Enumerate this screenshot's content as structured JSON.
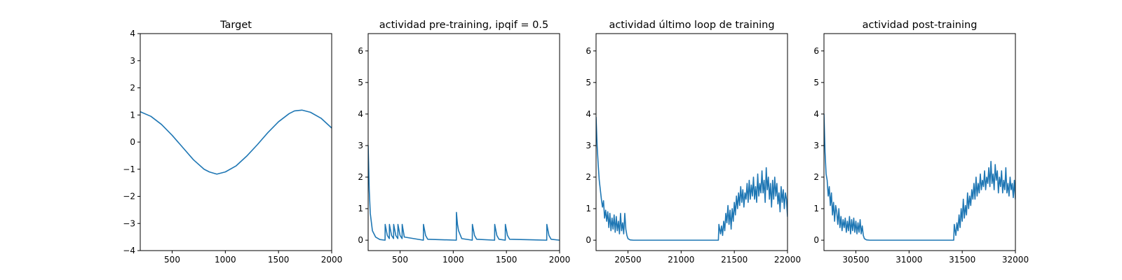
{
  "chart_data": [
    {
      "type": "line",
      "title": "Target",
      "xlabel": "",
      "ylabel": "",
      "xlim": [
        200,
        2000
      ],
      "ylim": [
        -4,
        4
      ],
      "xticks": [
        500,
        1000,
        1500,
        2000
      ],
      "yticks": [
        -4,
        -3,
        -2,
        -1,
        0,
        1,
        2,
        3,
        4
      ],
      "grid": false,
      "series": [
        {
          "color": "#1f77b4",
          "x": [
            200,
            300,
            400,
            500,
            600,
            700,
            800,
            850,
            920,
            1000,
            1100,
            1200,
            1300,
            1400,
            1500,
            1600,
            1650,
            1720,
            1800,
            1900,
            2000
          ],
          "y": [
            1.12,
            0.95,
            0.65,
            0.25,
            -0.2,
            -0.65,
            -1.0,
            -1.1,
            -1.18,
            -1.1,
            -0.88,
            -0.52,
            -0.1,
            0.35,
            0.75,
            1.05,
            1.15,
            1.18,
            1.1,
            0.88,
            0.52
          ]
        }
      ]
    },
    {
      "type": "line",
      "title": "actividad pre-training, ipqif = 0.5",
      "xlabel": "",
      "ylabel": "",
      "xlim": [
        200,
        2000
      ],
      "ylim": [
        -0.33,
        6.55
      ],
      "xticks": [
        500,
        1000,
        1500,
        2000
      ],
      "yticks": [
        0,
        1,
        2,
        3,
        4,
        5,
        6
      ],
      "grid": false,
      "series": [
        {
          "color": "#1f77b4",
          "x": [
            200,
            210,
            220,
            240,
            270,
            310,
            359,
            360,
            380,
            399,
            400,
            420,
            439,
            440,
            460,
            479,
            480,
            500,
            519,
            520,
            540,
            719,
            720,
            740,
            760,
            1029,
            1030,
            1040,
            1050,
            1080,
            1179,
            1180,
            1200,
            1220,
            1389,
            1390,
            1410,
            1430,
            1489,
            1490,
            1510,
            1530,
            1879,
            1880,
            1900,
            1920,
            2000
          ],
          "y": [
            3.0,
            1.6,
            0.85,
            0.3,
            0.1,
            0.02,
            0.0,
            0.5,
            0.15,
            0.05,
            0.5,
            0.15,
            0.05,
            0.5,
            0.15,
            0.05,
            0.5,
            0.15,
            0.05,
            0.5,
            0.1,
            0.0,
            0.5,
            0.15,
            0.03,
            0.0,
            0.88,
            0.5,
            0.3,
            0.05,
            0.0,
            0.5,
            0.15,
            0.03,
            0.0,
            0.5,
            0.15,
            0.03,
            0.0,
            0.5,
            0.15,
            0.03,
            0.0,
            0.5,
            0.15,
            0.03,
            0.0
          ]
        }
      ]
    },
    {
      "type": "line",
      "title": "actividad último loop de training",
      "xlabel": "",
      "ylabel": "",
      "xlim": [
        20200,
        22000
      ],
      "ylim": [
        -0.33,
        6.55
      ],
      "xticks": [
        20500,
        21000,
        21500,
        22000
      ],
      "yticks": [
        0,
        1,
        2,
        3,
        4,
        5,
        6
      ],
      "grid": false,
      "series": [
        {
          "color": "#1f77b4",
          "x": [
            20200,
            20210,
            20220,
            20230,
            20240,
            20250,
            20260,
            20270,
            20280,
            20290,
            20300,
            20310,
            20320,
            20330,
            20340,
            20350,
            20360,
            20370,
            20380,
            20390,
            20400,
            20410,
            20420,
            20430,
            20440,
            20450,
            20460,
            20470,
            20480,
            20490,
            20500,
            20520,
            20550,
            21350,
            21355,
            21370,
            21380,
            21390,
            21400,
            21410,
            21420,
            21430,
            21440,
            21450,
            21460,
            21470,
            21480,
            21490,
            21500,
            21510,
            21520,
            21530,
            21540,
            21550,
            21560,
            21570,
            21580,
            21590,
            21600,
            21610,
            21620,
            21630,
            21640,
            21650,
            21660,
            21670,
            21680,
            21690,
            21700,
            21710,
            21720,
            21730,
            21740,
            21750,
            21760,
            21770,
            21780,
            21790,
            21800,
            21810,
            21820,
            21830,
            21840,
            21850,
            21860,
            21870,
            21880,
            21890,
            21900,
            21910,
            21920,
            21930,
            21940,
            21950,
            21960,
            21970,
            21980,
            21990,
            22000
          ],
          "y": [
            3.9,
            3.0,
            2.4,
            1.9,
            1.6,
            1.3,
            1.05,
            1.25,
            0.7,
            0.95,
            0.6,
            0.9,
            0.4,
            0.85,
            0.3,
            0.7,
            0.35,
            0.8,
            0.25,
            0.75,
            0.3,
            0.6,
            0.2,
            0.85,
            0.3,
            0.55,
            0.2,
            0.85,
            0.35,
            0.15,
            0.05,
            0.01,
            0.0,
            0.0,
            0.5,
            0.2,
            0.45,
            0.15,
            0.6,
            0.3,
            0.85,
            0.55,
            1.1,
            0.5,
            0.95,
            0.35,
            1.0,
            0.6,
            1.2,
            0.8,
            1.4,
            1.0,
            1.5,
            1.1,
            1.7,
            1.2,
            1.6,
            1.05,
            1.5,
            1.3,
            1.8,
            1.2,
            1.9,
            1.3,
            1.75,
            1.4,
            2.0,
            1.3,
            1.7,
            1.2,
            2.1,
            1.4,
            1.8,
            1.5,
            2.2,
            1.5,
            1.9,
            1.2,
            2.3,
            1.6,
            2.0,
            1.3,
            1.8,
            1.05,
            1.9,
            1.3,
            2.0,
            1.4,
            1.8,
            1.15,
            1.5,
            0.9,
            1.7,
            1.2,
            1.6,
            1.0,
            1.5,
            1.3,
            0.75
          ]
        }
      ]
    },
    {
      "type": "line",
      "title": "actividad post-training",
      "xlabel": "",
      "ylabel": "",
      "xlim": [
        30200,
        32000
      ],
      "ylim": [
        -0.33,
        6.55
      ],
      "xticks": [
        30500,
        31000,
        31500,
        32000
      ],
      "yticks": [
        0,
        1,
        2,
        3,
        4,
        5,
        6
      ],
      "grid": false,
      "series": [
        {
          "color": "#1f77b4",
          "x": [
            30200,
            30210,
            30220,
            30230,
            30240,
            30250,
            30260,
            30270,
            30280,
            30290,
            30300,
            30310,
            30320,
            30330,
            30340,
            30350,
            30360,
            30370,
            30380,
            30390,
            30400,
            30410,
            30420,
            30430,
            30440,
            30450,
            30460,
            30470,
            30480,
            30490,
            30500,
            30510,
            30520,
            30530,
            30540,
            30550,
            30560,
            30570,
            30580,
            30600,
            30630,
            31420,
            31425,
            31440,
            31450,
            31460,
            31470,
            31480,
            31490,
            31500,
            31510,
            31520,
            31530,
            31540,
            31550,
            31560,
            31570,
            31580,
            31590,
            31600,
            31610,
            31620,
            31630,
            31640,
            31650,
            31660,
            31670,
            31680,
            31690,
            31700,
            31710,
            31720,
            31730,
            31740,
            31750,
            31760,
            31770,
            31780,
            31790,
            31800,
            31810,
            31820,
            31830,
            31840,
            31850,
            31860,
            31870,
            31880,
            31890,
            31900,
            31910,
            31920,
            31930,
            31940,
            31950,
            31960,
            31970,
            31980,
            31990,
            32000
          ],
          "y": [
            4.0,
            2.8,
            2.1,
            1.9,
            1.4,
            1.7,
            1.1,
            1.5,
            0.8,
            1.2,
            0.6,
            1.1,
            0.9,
            0.5,
            1.0,
            0.4,
            0.75,
            0.3,
            0.65,
            0.4,
            0.7,
            0.25,
            0.6,
            0.3,
            0.75,
            0.2,
            0.65,
            0.3,
            0.7,
            0.25,
            0.6,
            0.2,
            0.55,
            0.25,
            0.65,
            0.2,
            0.45,
            0.15,
            0.05,
            0.01,
            0.0,
            0.0,
            0.5,
            0.15,
            0.55,
            0.3,
            0.8,
            0.4,
            1.0,
            0.6,
            1.3,
            0.7,
            1.1,
            0.8,
            1.5,
            1.0,
            1.4,
            1.1,
            1.6,
            1.3,
            1.8,
            1.3,
            2.0,
            1.4,
            1.8,
            1.5,
            2.1,
            1.6,
            1.9,
            1.7,
            2.2,
            1.6,
            2.0,
            1.8,
            2.3,
            1.7,
            2.5,
            1.8,
            2.1,
            1.6,
            2.4,
            1.9,
            2.2,
            1.5,
            2.0,
            1.7,
            2.2,
            1.5,
            1.9,
            1.6,
            2.3,
            1.5,
            1.8,
            1.4,
            2.0,
            1.6,
            1.8,
            1.35,
            1.9,
            1.3
          ]
        }
      ]
    }
  ]
}
